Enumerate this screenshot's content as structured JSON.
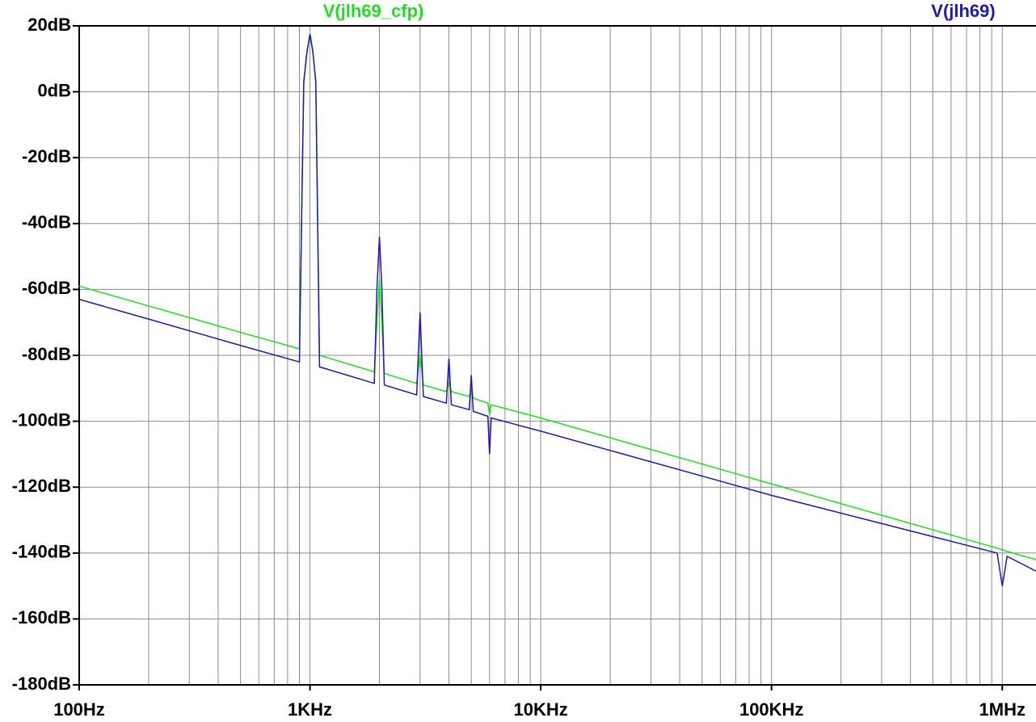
{
  "chart_data": {
    "type": "line",
    "log_x": true,
    "grid": true,
    "background": "#ffffff",
    "grid_color": "#8c8c8c",
    "x": [
      100,
      200,
      500,
      900,
      940,
      970,
      1000,
      1030,
      1060,
      1100,
      1900,
      1950,
      2000,
      2050,
      2100,
      2900,
      3000,
      3100,
      3900,
      4000,
      4100,
      4900,
      5000,
      5100,
      5900,
      6000,
      6100,
      10000,
      100000,
      950000,
      1000000,
      1050000,
      1400000
    ],
    "series": [
      {
        "name": "V(jlh69_cfp)",
        "color": "#22dd22",
        "values": [
          -59,
          -65,
          -73,
          -78,
          3,
          12,
          17.5,
          12,
          3,
          -80,
          -85,
          -70,
          -57,
          -70,
          -85.5,
          -88.5,
          -80,
          -89,
          -91,
          -88,
          -91,
          -92.5,
          -90,
          -93,
          -94.5,
          -98,
          -95,
          -99,
          -119,
          -138.5,
          -139,
          -139.5,
          -142
        ]
      },
      {
        "name": "V(jlh69)",
        "color": "#1c1ca8",
        "values": [
          -63,
          -69,
          -77,
          -82,
          3,
          12,
          17.5,
          12,
          3,
          -83.5,
          -88.5,
          -60,
          -44,
          -60,
          -89,
          -92,
          -67,
          -92.5,
          -94.5,
          -81,
          -95,
          -96.5,
          -86,
          -97,
          -98.5,
          -110,
          -99,
          -103,
          -122.5,
          -140,
          -150,
          -141,
          -145.5
        ]
      }
    ],
    "xlim": [
      100,
      1400000
    ],
    "ylim": [
      -180,
      20
    ],
    "xticks": [
      {
        "value": 100,
        "label": "100Hz"
      },
      {
        "value": 1000,
        "label": "1KHz"
      },
      {
        "value": 10000,
        "label": "10KHz"
      },
      {
        "value": 100000,
        "label": "100KHz"
      },
      {
        "value": 1000000,
        "label": "1MHz"
      }
    ],
    "xminorticks": [
      200,
      300,
      400,
      500,
      600,
      700,
      800,
      900,
      2000,
      3000,
      4000,
      5000,
      6000,
      7000,
      8000,
      9000,
      20000,
      30000,
      40000,
      50000,
      60000,
      70000,
      80000,
      90000,
      200000,
      300000,
      400000,
      500000,
      600000,
      700000,
      800000,
      900000
    ],
    "yticks": [
      {
        "value": 20,
        "label": "20dB"
      },
      {
        "value": 0,
        "label": "0dB"
      },
      {
        "value": -20,
        "label": "-20dB"
      },
      {
        "value": -40,
        "label": "-40dB"
      },
      {
        "value": -60,
        "label": "-60dB"
      },
      {
        "value": -80,
        "label": "-80dB"
      },
      {
        "value": -100,
        "label": "-100dB"
      },
      {
        "value": -120,
        "label": "-120dB"
      },
      {
        "value": -140,
        "label": "-140dB"
      },
      {
        "value": -160,
        "label": "-160dB"
      },
      {
        "value": -180,
        "label": "-180dB"
      }
    ]
  }
}
